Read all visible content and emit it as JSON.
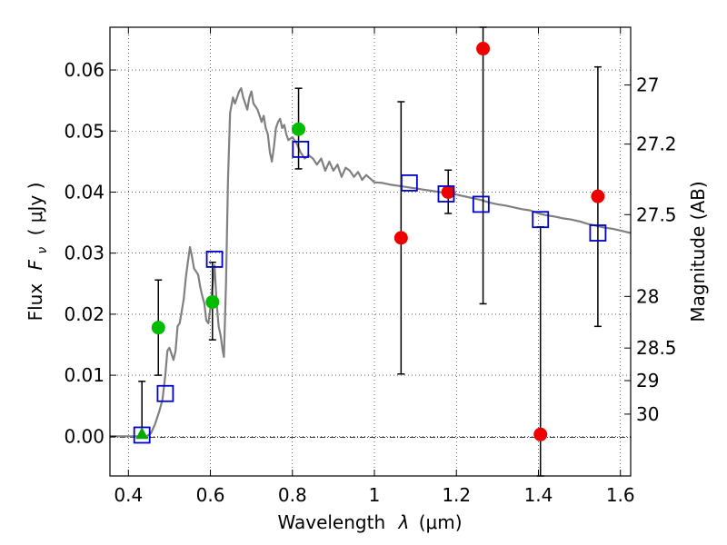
{
  "chart_data": {
    "type": "scatter",
    "xlabel_prefix": "Wavelength",
    "xlabel_symbol": "λ",
    "xlabel_unit": "(μm)",
    "ylabel_prefix": "Flux",
    "ylabel_symbol": "F",
    "ylabel_subscript": "ν",
    "ylabel_unit": "( μJy )",
    "y2label": "Magnitude (AB)",
    "xlim": [
      0.355,
      1.625
    ],
    "ylim": [
      -0.0065,
      0.067
    ],
    "grid": true,
    "x_ticks": [
      {
        "value": 0.4,
        "label": "0.4"
      },
      {
        "value": 0.6,
        "label": "0.6"
      },
      {
        "value": 0.8,
        "label": "0.8"
      },
      {
        "value": 1.0,
        "label": "1"
      },
      {
        "value": 1.2,
        "label": "1.2"
      },
      {
        "value": 1.4,
        "label": "1.4"
      },
      {
        "value": 1.6,
        "label": "1.6"
      }
    ],
    "y_ticks": [
      {
        "value": 0.0,
        "label": "0.00"
      },
      {
        "value": 0.01,
        "label": "0.01"
      },
      {
        "value": 0.02,
        "label": "0.02"
      },
      {
        "value": 0.03,
        "label": "0.03"
      },
      {
        "value": 0.04,
        "label": "0.04"
      },
      {
        "value": 0.05,
        "label": "0.05"
      },
      {
        "value": 0.06,
        "label": "0.06"
      }
    ],
    "magnitude_ticks": [
      {
        "value": 27,
        "label": "27"
      },
      {
        "value": 27.2,
        "label": "27.2"
      },
      {
        "value": 27.5,
        "label": "27.5"
      },
      {
        "value": 28,
        "label": "28"
      },
      {
        "value": 28.5,
        "label": "28.5"
      },
      {
        "value": 29,
        "label": "29"
      },
      {
        "value": 30,
        "label": "30"
      }
    ],
    "model_spectrum": {
      "color": "#808080",
      "x": [
        0.355,
        0.445,
        0.455,
        0.465,
        0.475,
        0.483,
        0.49,
        0.495,
        0.5,
        0.505,
        0.51,
        0.515,
        0.52,
        0.525,
        0.53,
        0.535,
        0.54,
        0.545,
        0.55,
        0.555,
        0.56,
        0.565,
        0.57,
        0.575,
        0.58,
        0.585,
        0.59,
        0.595,
        0.6,
        0.605,
        0.61,
        0.615,
        0.62,
        0.625,
        0.63,
        0.633,
        0.638,
        0.643,
        0.648,
        0.655,
        0.66,
        0.665,
        0.67,
        0.675,
        0.68,
        0.685,
        0.69,
        0.695,
        0.7,
        0.705,
        0.71,
        0.715,
        0.72,
        0.725,
        0.73,
        0.735,
        0.74,
        0.745,
        0.75,
        0.755,
        0.76,
        0.765,
        0.77,
        0.775,
        0.78,
        0.785,
        0.79,
        0.8,
        0.81,
        0.82,
        0.83,
        0.84,
        0.85,
        0.86,
        0.87,
        0.88,
        0.89,
        0.9,
        0.91,
        0.92,
        0.93,
        0.94,
        0.95,
        0.96,
        0.97,
        0.98,
        0.99,
        1.0,
        1.02,
        1.04,
        1.06,
        1.08,
        1.1,
        1.12,
        1.14,
        1.16,
        1.18,
        1.2,
        1.22,
        1.24,
        1.26,
        1.28,
        1.3,
        1.32,
        1.34,
        1.36,
        1.38,
        1.4,
        1.42,
        1.44,
        1.46,
        1.48,
        1.5,
        1.52,
        1.54,
        1.56,
        1.58,
        1.6,
        1.625
      ],
      "y": [
        0.0,
        0.0,
        0.0005,
        0.002,
        0.004,
        0.006,
        0.01,
        0.014,
        0.0145,
        0.0135,
        0.0125,
        0.014,
        0.018,
        0.0185,
        0.0205,
        0.0225,
        0.026,
        0.0285,
        0.031,
        0.0295,
        0.0275,
        0.027,
        0.0265,
        0.0245,
        0.023,
        0.0218,
        0.019,
        0.0185,
        0.021,
        0.0245,
        0.028,
        0.022,
        0.018,
        0.0165,
        0.014,
        0.013,
        0.025,
        0.042,
        0.053,
        0.0555,
        0.0545,
        0.0555,
        0.0565,
        0.057,
        0.0555,
        0.0545,
        0.0535,
        0.0555,
        0.0565,
        0.0545,
        0.054,
        0.0535,
        0.0525,
        0.0515,
        0.0525,
        0.0505,
        0.0495,
        0.0465,
        0.045,
        0.0475,
        0.0505,
        0.0515,
        0.052,
        0.0505,
        0.051,
        0.0495,
        0.0485,
        0.049,
        0.048,
        0.0465,
        0.0455,
        0.046,
        0.0455,
        0.0445,
        0.0455,
        0.0435,
        0.045,
        0.0435,
        0.0445,
        0.0425,
        0.044,
        0.0435,
        0.0425,
        0.0433,
        0.042,
        0.0428,
        0.0422,
        0.0416,
        0.0415,
        0.0412,
        0.041,
        0.0408,
        0.0406,
        0.0404,
        0.0402,
        0.04,
        0.0398,
        0.0396,
        0.0393,
        0.039,
        0.0387,
        0.0383,
        0.038,
        0.0378,
        0.0375,
        0.0372,
        0.037,
        0.0365,
        0.0362,
        0.036,
        0.0357,
        0.0355,
        0.0352,
        0.0348,
        0.0345,
        0.0342,
        0.034,
        0.0337,
        0.0333
      ]
    },
    "model_points": {
      "color": "#0000cc",
      "x": [
        0.433,
        0.49,
        0.61,
        0.82,
        1.085,
        1.175,
        1.26,
        1.405,
        1.545
      ],
      "y": [
        0.0002,
        0.007,
        0.029,
        0.047,
        0.0415,
        0.0397,
        0.038,
        0.0355,
        0.0333
      ]
    },
    "observed": [
      {
        "x": 0.433,
        "y": 0.0003,
        "err_low": 0.0003,
        "err_high": 0.009,
        "color": "#00aa00",
        "marker": "triangle"
      },
      {
        "x": 0.473,
        "y": 0.0178,
        "err_low": 0.01,
        "err_high": 0.0256,
        "color": "#00bb00",
        "marker": "circle"
      },
      {
        "x": 0.605,
        "y": 0.022,
        "err_low": 0.0158,
        "err_high": 0.0285,
        "color": "#00bb00",
        "marker": "circle"
      },
      {
        "x": 0.815,
        "y": 0.0503,
        "err_low": 0.0438,
        "err_high": 0.057,
        "color": "#00bb00",
        "marker": "circle"
      },
      {
        "x": 1.065,
        "y": 0.0325,
        "err_low": 0.0102,
        "err_high": 0.0548,
        "color": "#ee0000",
        "marker": "circle"
      },
      {
        "x": 1.18,
        "y": 0.04,
        "err_low": 0.0365,
        "err_high": 0.0436,
        "color": "#ee0000",
        "marker": "circle"
      },
      {
        "x": 1.265,
        "y": 0.0635,
        "err_low": 0.0217,
        "err_high": 0.067,
        "color": "#ee0000",
        "marker": "circle"
      },
      {
        "x": 1.405,
        "y": 0.0003,
        "err_low": -0.0065,
        "err_high": 0.0343,
        "color": "#ee0000",
        "marker": "circle"
      },
      {
        "x": 1.545,
        "y": 0.0393,
        "err_low": 0.018,
        "err_high": 0.0605,
        "color": "#ee0000",
        "marker": "circle"
      }
    ]
  }
}
